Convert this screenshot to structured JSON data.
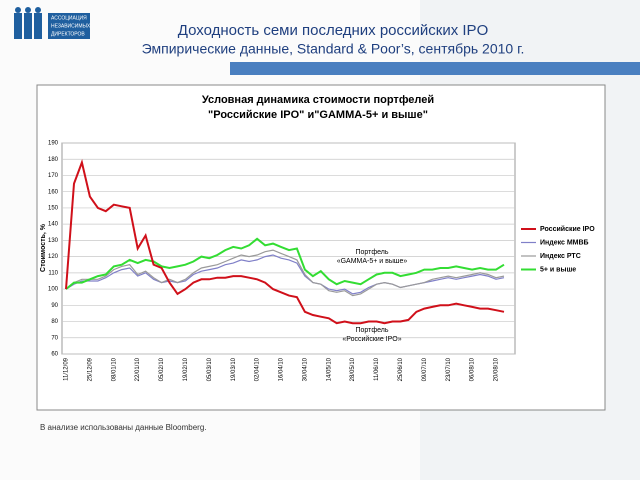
{
  "header": {
    "title": "Доходность семи последних российских IPO",
    "subtitle": "Эмпирические данные, Standard & Poor’s, сентябрь 2010 г."
  },
  "logo": [
    "АССОЦИАЦИЯ",
    "НЕЗАВИСИМЫХ",
    "ДИРЕКТОРОВ"
  ],
  "footer": "В анализе использованы данные Bloomberg.",
  "chart_data": {
    "type": "line",
    "title": [
      "Условная динамика стоимости портфелей",
      "\"Российские IPO\" и\"GAMMA-5+ и выше\""
    ],
    "y_label": "Стоимость, %",
    "categories": [
      "11/12/09",
      null,
      null,
      "25/12/09",
      null,
      null,
      "08/01/10",
      null,
      null,
      "22/01/10",
      null,
      null,
      "05/02/10",
      null,
      null,
      "19/02/10",
      null,
      null,
      "05/03/10",
      null,
      null,
      "19/03/10",
      null,
      null,
      "02/04/10",
      null,
      null,
      "16/04/10",
      null,
      null,
      "30/04/10",
      null,
      null,
      "14/05/10",
      null,
      null,
      "28/05/10",
      null,
      null,
      "11/06/10",
      null,
      null,
      "25/06/10",
      null,
      null,
      "09/07/10",
      null,
      null,
      "23/07/10",
      null,
      null,
      "06/08/10",
      null,
      null,
      "20/08/10",
      null
    ],
    "series": [
      {
        "name": "Российские IPO",
        "color": "#d0101a",
        "values": [
          100,
          165,
          178,
          157,
          150,
          148,
          152,
          151,
          150,
          125,
          133,
          115,
          113,
          104,
          97,
          100,
          104,
          106,
          106,
          107,
          107,
          108,
          108,
          107,
          106,
          104,
          100,
          98,
          96,
          95,
          86,
          84,
          83,
          82,
          79,
          80,
          79,
          79,
          80,
          80,
          79,
          80,
          80,
          81,
          86,
          88,
          89,
          90,
          90,
          91,
          90,
          89,
          88,
          88,
          87,
          86
        ]
      },
      {
        "name": "Индекс ММВБ",
        "color": "#8080c8",
        "values": [
          100,
          103,
          105,
          105,
          105,
          107,
          110,
          112,
          113,
          108,
          110,
          106,
          104,
          105,
          104,
          105,
          109,
          111,
          112,
          113,
          115,
          116,
          118,
          117,
          118,
          120,
          121,
          119,
          118,
          116,
          108,
          104,
          103,
          100,
          99,
          100,
          97,
          98,
          101,
          103,
          104,
          103,
          101,
          102,
          103,
          104,
          105,
          106,
          107,
          106,
          107,
          108,
          109,
          108,
          106,
          107
        ]
      },
      {
        "name": "Индекс РТС",
        "color": "#9a9a9a",
        "values": [
          100,
          104,
          106,
          106,
          106,
          108,
          112,
          114,
          115,
          109,
          111,
          107,
          104,
          106,
          104,
          106,
          110,
          113,
          114,
          115,
          117,
          119,
          121,
          120,
          121,
          123,
          124,
          122,
          120,
          118,
          109,
          104,
          103,
          99,
          98,
          99,
          96,
          97,
          100,
          103,
          104,
          103,
          101,
          102,
          103,
          104,
          106,
          107,
          108,
          107,
          108,
          109,
          110,
          109,
          107,
          108
        ]
      },
      {
        "name": "5+ и выше",
        "color": "#33dd33",
        "values": [
          100,
          104,
          104,
          106,
          108,
          109,
          114,
          115,
          118,
          116,
          118,
          117,
          114,
          113,
          114,
          115,
          117,
          120,
          119,
          121,
          124,
          126,
          125,
          127,
          131,
          127,
          128,
          126,
          124,
          125,
          112,
          108,
          111,
          106,
          103,
          105,
          104,
          103,
          106,
          109,
          110,
          110,
          108,
          109,
          110,
          112,
          112,
          113,
          113,
          114,
          113,
          112,
          113,
          112,
          112,
          115
        ]
      }
    ],
    "annotations": [
      [
        "Портфель",
        "«GAMMA-5+ и выше»"
      ],
      [
        "Портфель",
        "«Российские IPO»"
      ]
    ],
    "ylim": [
      60,
      190
    ],
    "yticks": [
      60,
      70,
      80,
      90,
      100,
      110,
      120,
      130,
      140,
      150,
      160,
      170,
      180,
      190
    ],
    "grid": true,
    "legend": "right"
  }
}
